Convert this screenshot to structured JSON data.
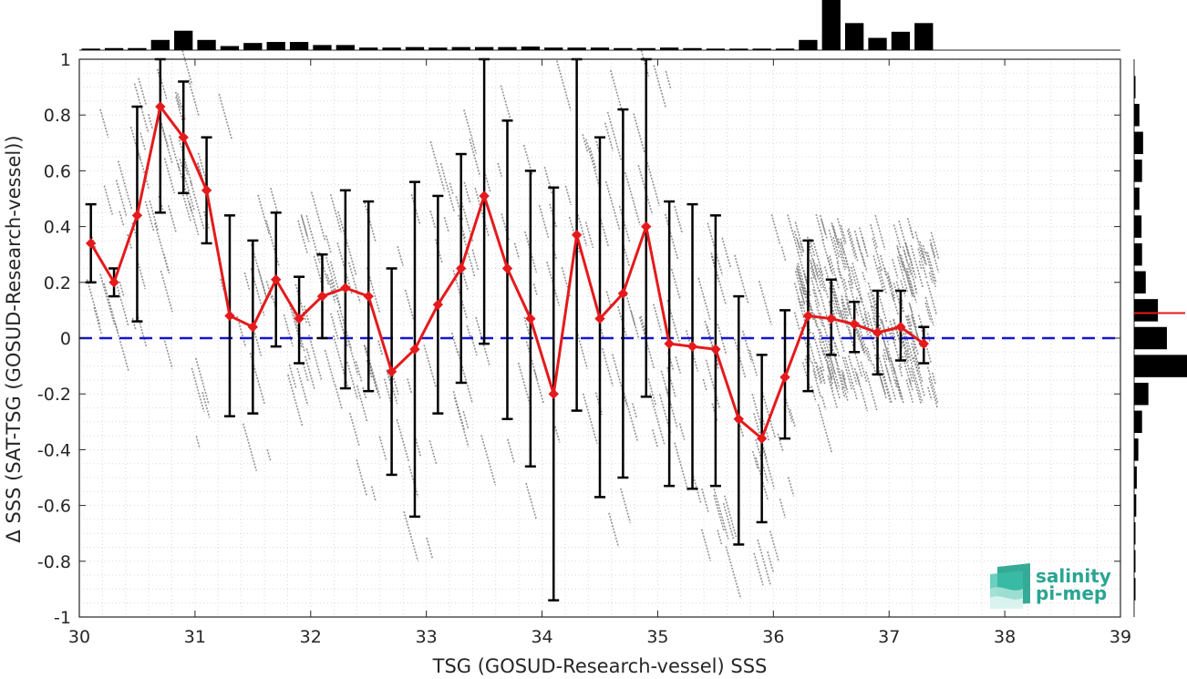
{
  "chart_data": {
    "type": "line",
    "xlabel": "TSG (GOSUD-Research-vessel) SSS",
    "ylabel": "Δ SSS (SAT-TSG (GOSUD-Research-vessel))",
    "xlim": [
      30,
      39
    ],
    "ylim": [
      -1,
      1
    ],
    "xticks": [
      30,
      31,
      32,
      33,
      34,
      35,
      36,
      37,
      38,
      39
    ],
    "yticks": [
      -1,
      -0.8,
      -0.6,
      -0.4,
      -0.2,
      0,
      0.2,
      0.4,
      0.6,
      0.8,
      1
    ],
    "grid": true,
    "reference_line": {
      "y": 0,
      "color": "#1414d2",
      "style": "dashed"
    },
    "series": [
      {
        "color": "#e41a1c",
        "marker": "diamond",
        "x": [
          30.1,
          30.3,
          30.5,
          30.7,
          30.9,
          31.1,
          31.3,
          31.5,
          31.7,
          31.9,
          32.1,
          32.3,
          32.5,
          32.7,
          32.9,
          33.1,
          33.3,
          33.5,
          33.7,
          33.9,
          34.1,
          34.3,
          34.5,
          34.7,
          34.9,
          35.1,
          35.3,
          35.5,
          35.7,
          35.9,
          36.1,
          36.3,
          36.5,
          36.7,
          36.9,
          37.1,
          37.3
        ],
        "y": [
          0.34,
          0.2,
          0.44,
          0.83,
          0.72,
          0.53,
          0.08,
          0.04,
          0.21,
          0.07,
          0.15,
          0.18,
          0.15,
          -0.12,
          -0.04,
          0.12,
          0.25,
          0.51,
          0.25,
          0.07,
          -0.2,
          0.37,
          0.07,
          0.16,
          0.4,
          -0.02,
          -0.03,
          -0.04,
          -0.29,
          -0.36,
          -0.14,
          0.08,
          0.07,
          0.05,
          0.02,
          0.04,
          -0.02
        ],
        "error_low": [
          0.2,
          0.15,
          0.06,
          0.45,
          0.52,
          0.34,
          -0.28,
          -0.27,
          -0.03,
          -0.09,
          0.0,
          -0.18,
          -0.19,
          -0.49,
          -0.64,
          -0.27,
          -0.16,
          -0.02,
          -0.29,
          -0.46,
          -0.94,
          -0.26,
          -0.57,
          -0.5,
          -0.21,
          -0.53,
          -0.54,
          -0.53,
          -0.74,
          -0.66,
          -0.36,
          -0.19,
          -0.06,
          -0.05,
          -0.13,
          -0.08,
          -0.09
        ],
        "error_high": [
          0.48,
          0.25,
          0.83,
          1.0,
          0.92,
          0.72,
          0.44,
          0.35,
          0.45,
          0.22,
          0.3,
          0.53,
          0.49,
          0.25,
          0.56,
          0.51,
          0.66,
          1.0,
          0.78,
          0.6,
          0.54,
          1.0,
          0.72,
          0.82,
          1.0,
          0.49,
          0.48,
          0.44,
          0.15,
          -0.06,
          0.1,
          0.35,
          0.21,
          0.13,
          0.17,
          0.17,
          0.04
        ]
      }
    ],
    "scatter_cloud": {
      "color": "#7f7f7f",
      "x_range": [
        30,
        37.4
      ],
      "y_range": [
        -1,
        1
      ],
      "dense_region_x": [
        36.2,
        37.4
      ],
      "dense_region_y": [
        -0.2,
        0.4
      ]
    },
    "top_histogram": {
      "bin_centers": [
        30.1,
        30.3,
        30.5,
        30.7,
        30.9,
        31.1,
        31.3,
        31.5,
        31.7,
        31.9,
        32.1,
        32.3,
        32.5,
        32.7,
        32.9,
        33.1,
        33.3,
        33.5,
        33.7,
        33.9,
        34.1,
        34.3,
        34.5,
        34.7,
        34.9,
        35.1,
        35.3,
        35.5,
        35.7,
        35.9,
        36.1,
        36.3,
        36.5,
        36.7,
        36.9,
        37.1,
        37.3
      ],
      "relative_counts": [
        0.03,
        0.04,
        0.04,
        0.2,
        0.38,
        0.2,
        0.08,
        0.14,
        0.16,
        0.16,
        0.1,
        0.1,
        0.05,
        0.05,
        0.06,
        0.05,
        0.06,
        0.06,
        0.06,
        0.07,
        0.05,
        0.05,
        0.05,
        0.04,
        0.04,
        0.05,
        0.04,
        0.03,
        0.03,
        0.03,
        0.03,
        0.2,
        1.0,
        0.53,
        0.24,
        0.36,
        0.53
      ]
    },
    "right_histogram": {
      "bin_centers": [
        0.9,
        0.8,
        0.7,
        0.6,
        0.5,
        0.4,
        0.3,
        0.2,
        0.1,
        0.0,
        -0.1,
        -0.2,
        -0.3,
        -0.4,
        -0.5,
        -0.6,
        -0.7,
        -0.8,
        -0.9
      ],
      "relative_counts": [
        0.02,
        0.1,
        0.17,
        0.15,
        0.1,
        0.14,
        0.15,
        0.22,
        0.45,
        0.62,
        1.0,
        0.27,
        0.15,
        0.08,
        0.05,
        0.04,
        0.02,
        0.02,
        0.01
      ],
      "mean_marker": {
        "y": 0.09,
        "color": "#e41a1c"
      }
    }
  },
  "logo": {
    "line1": "salinity",
    "line2": "pi-mep",
    "color": "#2aa591"
  }
}
